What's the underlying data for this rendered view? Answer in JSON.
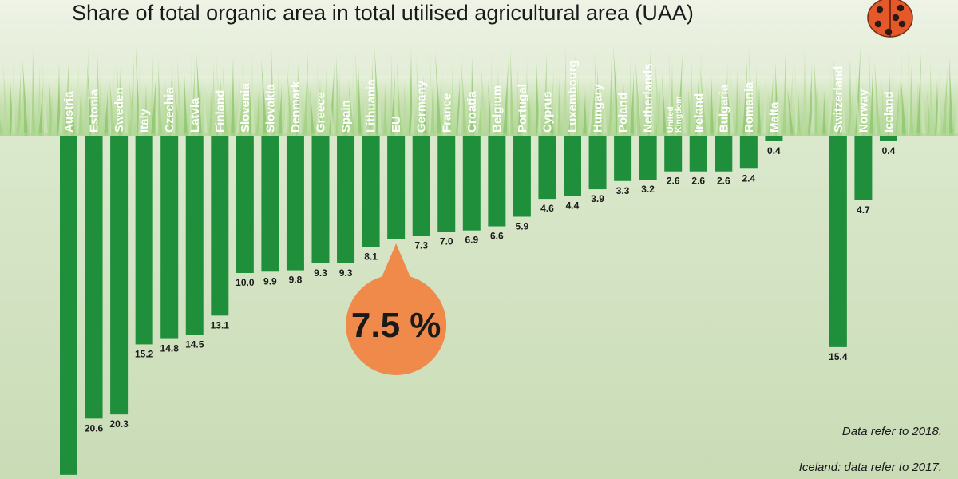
{
  "chart_data": {
    "type": "bar",
    "title": "Share of total organic area in total utilised agricultural area (UAA)",
    "orientation": "vertical-downward",
    "categories": [
      "Austria",
      "Estonia",
      "Sweden",
      "Italy",
      "Czechia",
      "Latvia",
      "Finland",
      "Slovenia",
      "Slovakia",
      "Denmark",
      "Greece",
      "Spain",
      "Lithuania",
      "EU",
      "Germany",
      "France",
      "Croatia",
      "Belgium",
      "Portugal",
      "Cyprus",
      "Luxembourg",
      "Hungary",
      "Poland",
      "Netherlands",
      "United Kingdom",
      "Ireland",
      "Bulgaria",
      "Romania",
      "Malta",
      "Switzerland",
      "Norway",
      "Iceland"
    ],
    "values": [
      24.7,
      20.6,
      20.3,
      15.2,
      14.8,
      14.5,
      13.1,
      10.0,
      9.9,
      9.8,
      9.3,
      9.3,
      8.1,
      7.5,
      7.3,
      7.0,
      6.9,
      6.6,
      5.9,
      4.6,
      4.4,
      3.9,
      3.3,
      3.2,
      2.6,
      2.6,
      2.6,
      2.4,
      0.4,
      15.4,
      4.7,
      0.4
    ],
    "value_labels": [
      "",
      "20.6",
      "20.3",
      "15.2",
      "14.8",
      "14.5",
      "13.1",
      "10.0",
      "9.9",
      "9.8",
      "9.3",
      "9.3",
      "8.1",
      "",
      "7.3",
      "7.0",
      "6.9",
      "6.6",
      "5.9",
      "4.6",
      "4.4",
      "3.9",
      "3.3",
      "3.2",
      "2.6",
      "2.6",
      "2.6",
      "2.4",
      "0.4",
      "15.4",
      "4.7",
      "0.4"
    ],
    "eu_callout": "7.5 %",
    "ylim": [
      0,
      25
    ],
    "grid": false,
    "bar_color": "#1f8f3c",
    "callout_color": "#f08a4b",
    "notes": [
      "Data refer to 2018.",
      "Iceland: data refer to 2017."
    ]
  }
}
